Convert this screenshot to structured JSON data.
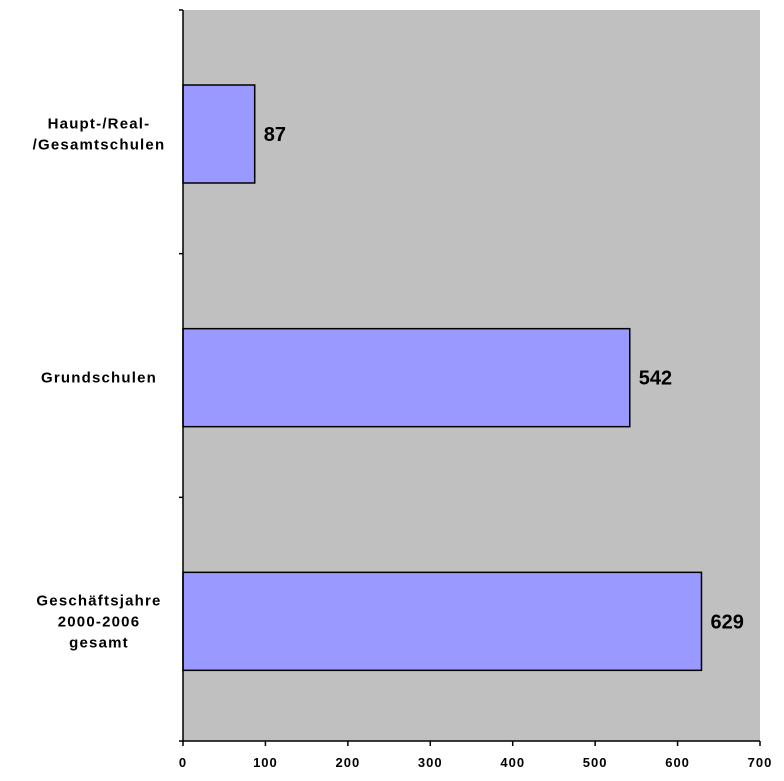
{
  "chart_data": {
    "type": "bar",
    "orientation": "horizontal",
    "categories": [
      [
        "Haupt-/Real-",
        "/Gesamtschulen"
      ],
      [
        "Grundschulen"
      ],
      [
        "Geschäftsjahre",
        "2000-2006",
        "gesamt"
      ]
    ],
    "values": [
      87,
      542,
      629
    ],
    "data_labels": [
      "87",
      "542",
      "629"
    ],
    "xlim": [
      0,
      700
    ],
    "x_ticks": [
      0,
      100,
      200,
      300,
      400,
      500,
      600,
      700
    ],
    "title": "",
    "xlabel": "",
    "ylabel": "",
    "grid": false,
    "legend": "none",
    "colors": {
      "plot_background": "#c0c0c0",
      "bar_fill": "#9999ff",
      "bar_stroke": "#000000"
    }
  }
}
